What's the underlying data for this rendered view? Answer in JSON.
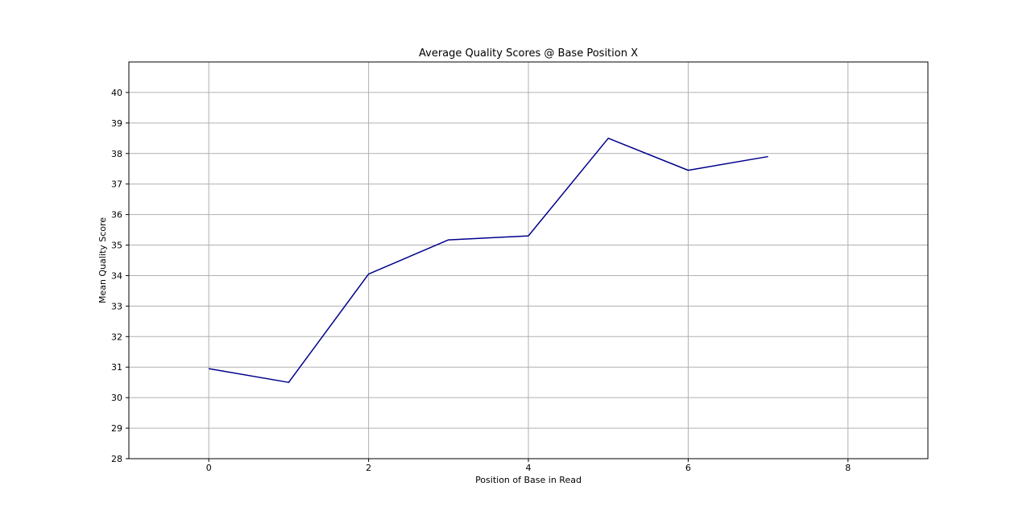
{
  "chart_data": {
    "type": "line",
    "title": "Average Quality Scores @ Base Position X",
    "xlabel": "Position of Base in Read",
    "ylabel": "Mean Quality Score",
    "xlim": [
      -1,
      9
    ],
    "ylim": [
      28,
      41
    ],
    "xticks": [
      0,
      2,
      4,
      6,
      8
    ],
    "xtick_labels": [
      "0",
      "2",
      "4",
      "6",
      "8"
    ],
    "yticks": [
      28,
      29,
      30,
      31,
      32,
      33,
      34,
      35,
      36,
      37,
      38,
      39,
      40
    ],
    "ytick_labels": [
      "28",
      "29",
      "30",
      "31",
      "32",
      "33",
      "34",
      "35",
      "36",
      "37",
      "38",
      "39",
      "40"
    ],
    "grid": true,
    "series": [
      {
        "color": "#00008b",
        "x": [
          0,
          1,
          2,
          3,
          4,
          5,
          6,
          7
        ],
        "y": [
          30.95,
          30.5,
          34.05,
          35.17,
          35.3,
          38.5,
          37.45,
          37.9
        ]
      }
    ]
  }
}
